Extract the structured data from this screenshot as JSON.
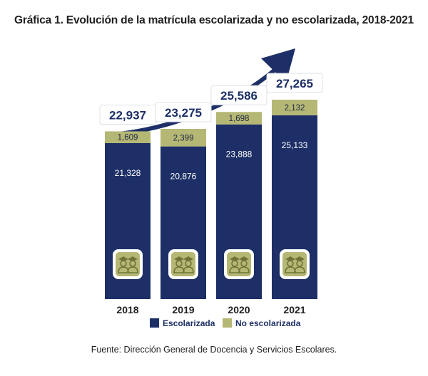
{
  "chart_data": {
    "type": "bar",
    "stacked": true,
    "title": "Gráfica 1. Evolución de la matrícula escolarizada y no escolarizada, 2018-2021",
    "categories": [
      "2018",
      "2019",
      "2020",
      "2021"
    ],
    "series": [
      {
        "name": "Escolarizada",
        "color": "#1d2f66",
        "values": [
          21328,
          20876,
          23888,
          25133
        ],
        "labels": [
          "21,328",
          "20,876",
          "23,888",
          "25,133"
        ]
      },
      {
        "name": "No escolarizada",
        "color": "#b5b774",
        "values": [
          1609,
          2399,
          1698,
          2132
        ],
        "labels": [
          "1,609",
          "2,399",
          "1,698",
          "2,132"
        ]
      }
    ],
    "totals": [
      22937,
      23275,
      25586,
      27265
    ],
    "total_labels": [
      "22,937",
      "23,275",
      "25,586",
      "27,265"
    ],
    "icon": "students-icon",
    "trend_arrow": true,
    "legend_position": "bottom",
    "grid": false
  },
  "source": "Fuente: Dirección General de Docencia y Servicios Escolares."
}
